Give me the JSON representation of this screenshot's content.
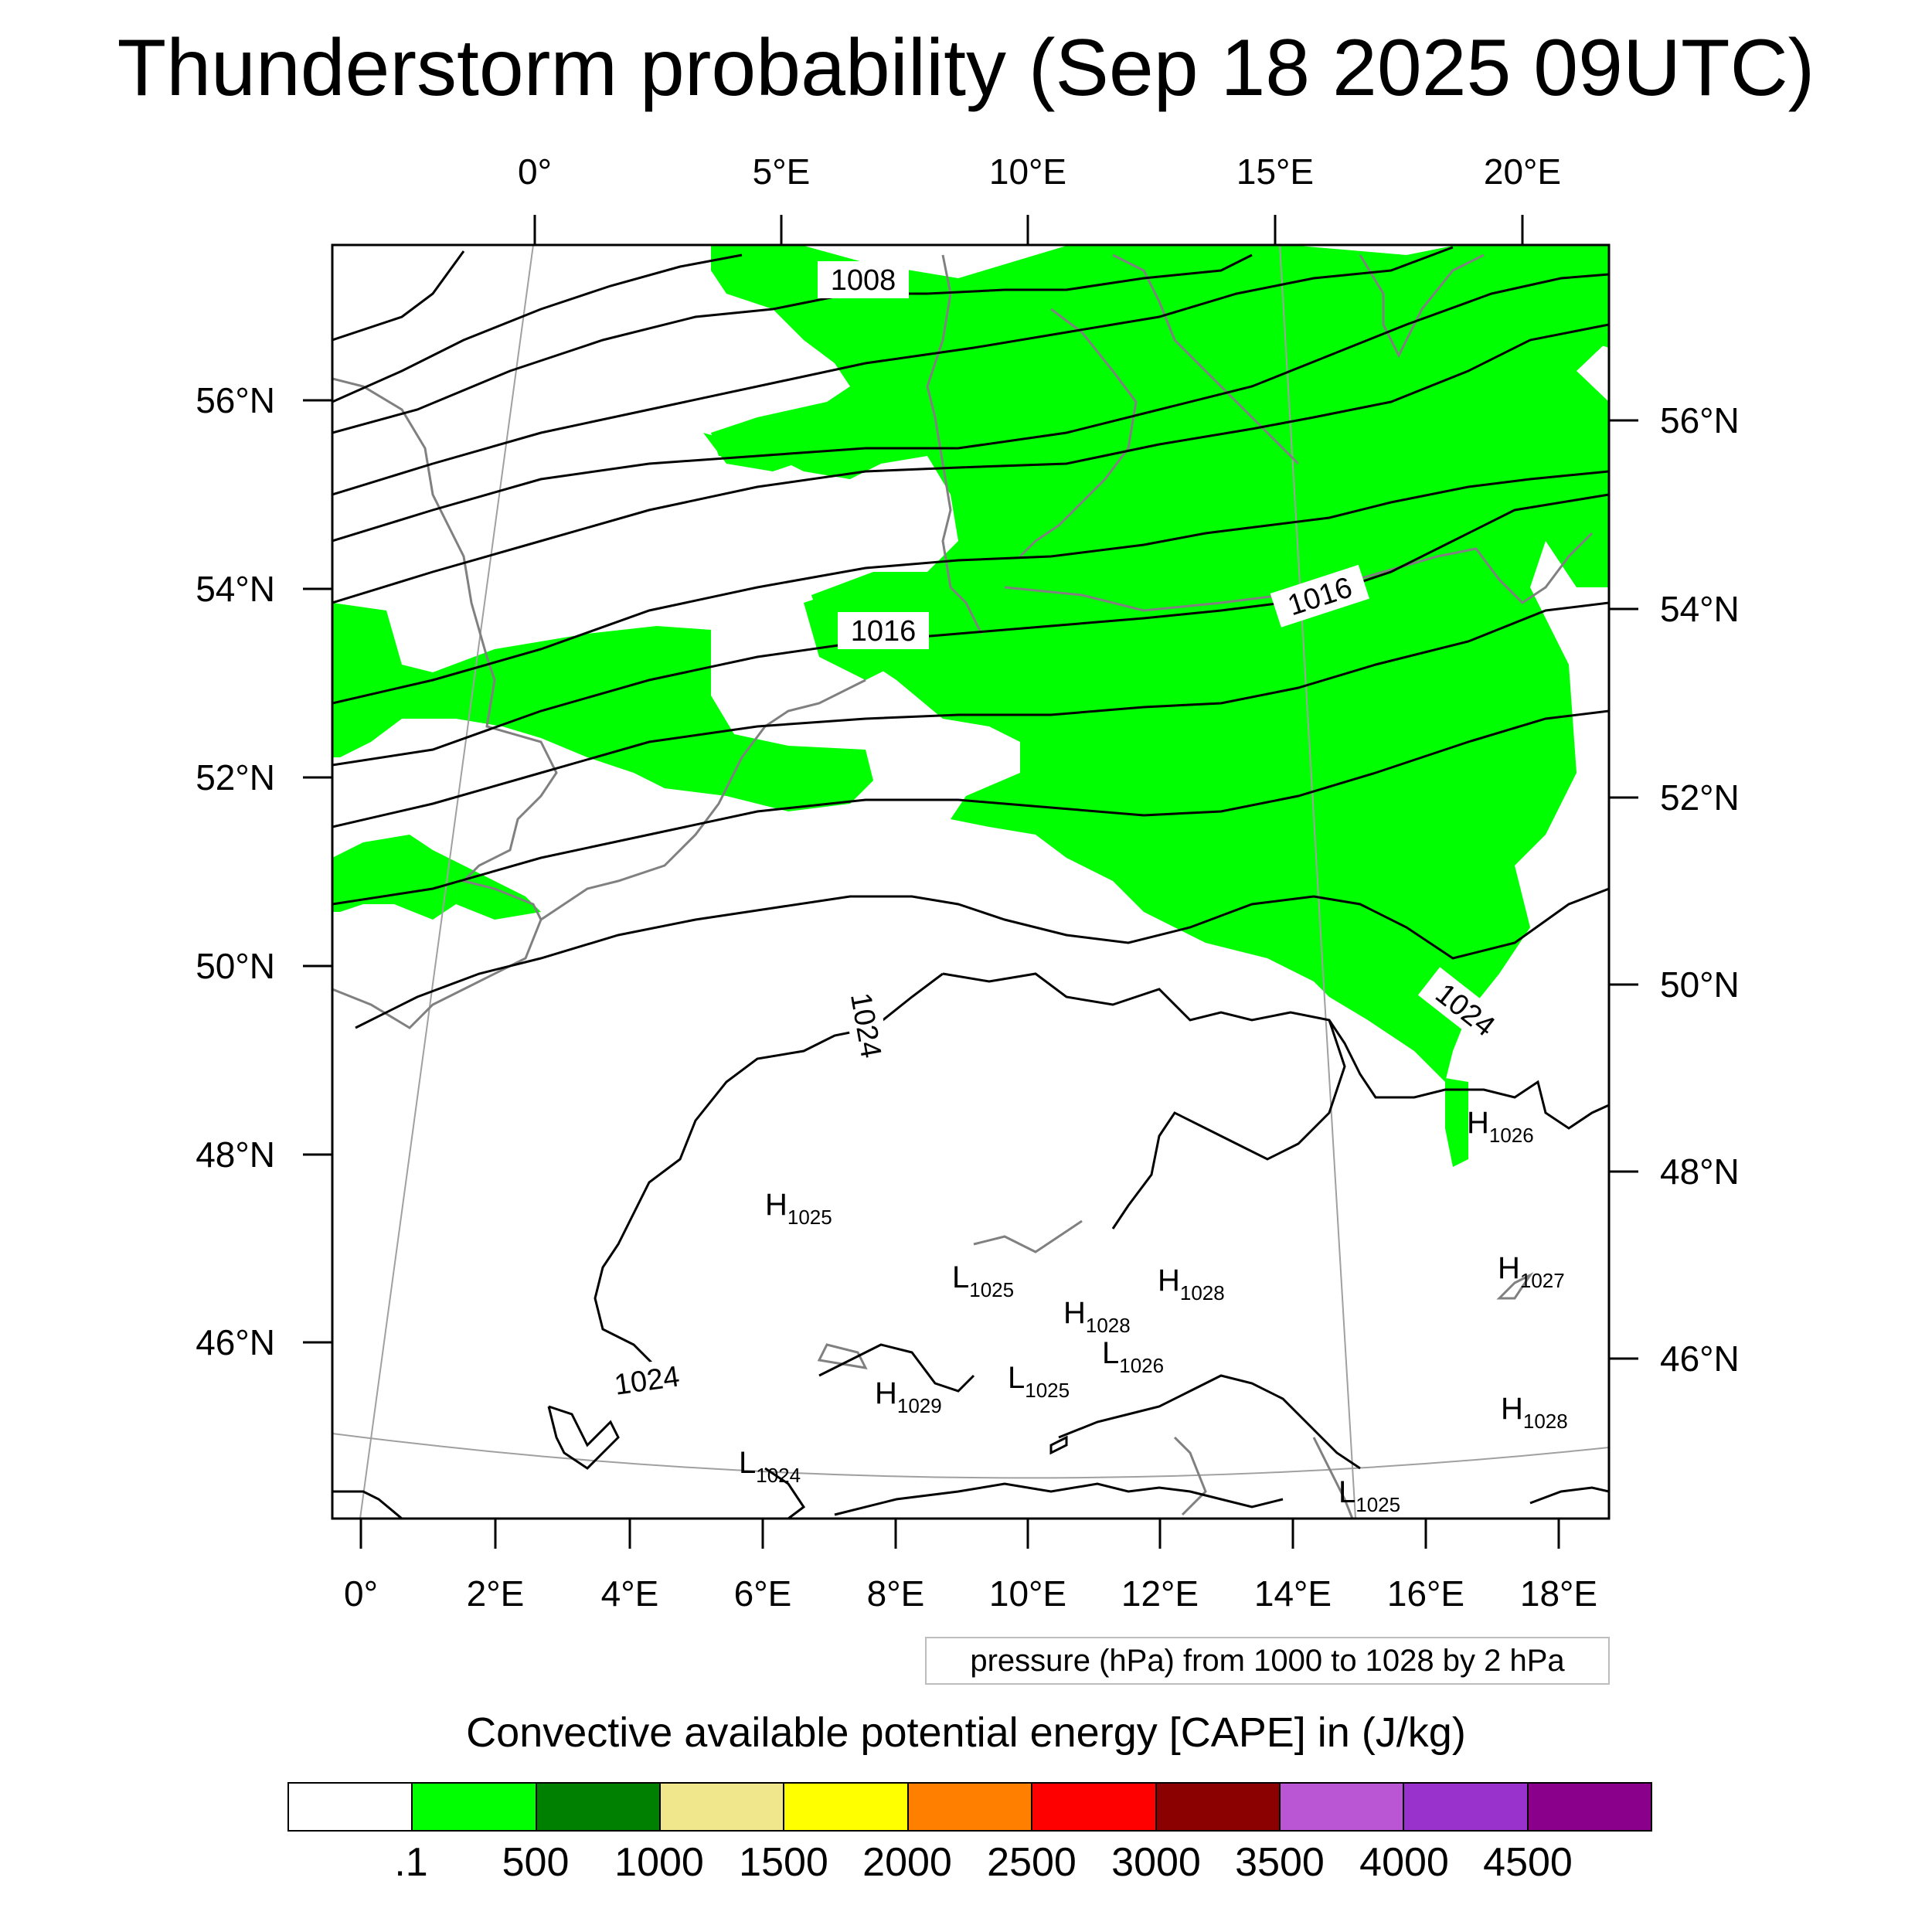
{
  "title": "Thunderstorm probability (Sep 18 2025 09UTC)",
  "top_lon_labels": [
    "0°",
    "5°E",
    "10°E",
    "15°E",
    "20°E"
  ],
  "bottom_lon_labels": [
    "0°",
    "2°E",
    "4°E",
    "6°E",
    "8°E",
    "10°E",
    "12°E",
    "14°E",
    "16°E",
    "18°E"
  ],
  "left_lat_labels": [
    "56°N",
    "54°N",
    "52°N",
    "50°N",
    "48°N",
    "46°N"
  ],
  "right_lat_labels": [
    "56°N",
    "54°N",
    "52°N",
    "50°N",
    "48°N",
    "46°N"
  ],
  "isobar_labels": [
    "1008",
    "1016",
    "1016",
    "1024",
    "1024",
    "1024"
  ],
  "pressure_centers": [
    {
      "type": "H",
      "value": "1026"
    },
    {
      "type": "H",
      "value": "1025"
    },
    {
      "type": "H",
      "value": "1027"
    },
    {
      "type": "L",
      "value": "1025"
    },
    {
      "type": "H",
      "value": "1028"
    },
    {
      "type": "H",
      "value": "1028"
    },
    {
      "type": "L",
      "value": "1026"
    },
    {
      "type": "H",
      "value": "1029"
    },
    {
      "type": "L",
      "value": "1025"
    },
    {
      "type": "H",
      "value": "1028"
    },
    {
      "type": "L",
      "value": "1024"
    },
    {
      "type": "L",
      "value": "1025"
    }
  ],
  "contour_info": "pressure (hPa) from 1000 to 1028 by 2 hPa",
  "colorbar": {
    "title": "Convective available potential energy [CAPE] in (J/kg)",
    "colors": [
      "#ffffff",
      "#00ff00",
      "#008000",
      "#f0e68c",
      "#ffff00",
      "#ff8000",
      "#ff0000",
      "#8b0000",
      "#ba55d3",
      "#9932cc",
      "#8b008b"
    ],
    "tick_labels": [
      ".1",
      "500",
      "1000",
      "1500",
      "2000",
      "2500",
      "3000",
      "3500",
      "4000",
      "4500"
    ]
  },
  "map_colors": {
    "cape_fill": "#00ff00",
    "coastline": "#808080",
    "isobar": "#000000",
    "graticule": "#a0a0a0"
  }
}
